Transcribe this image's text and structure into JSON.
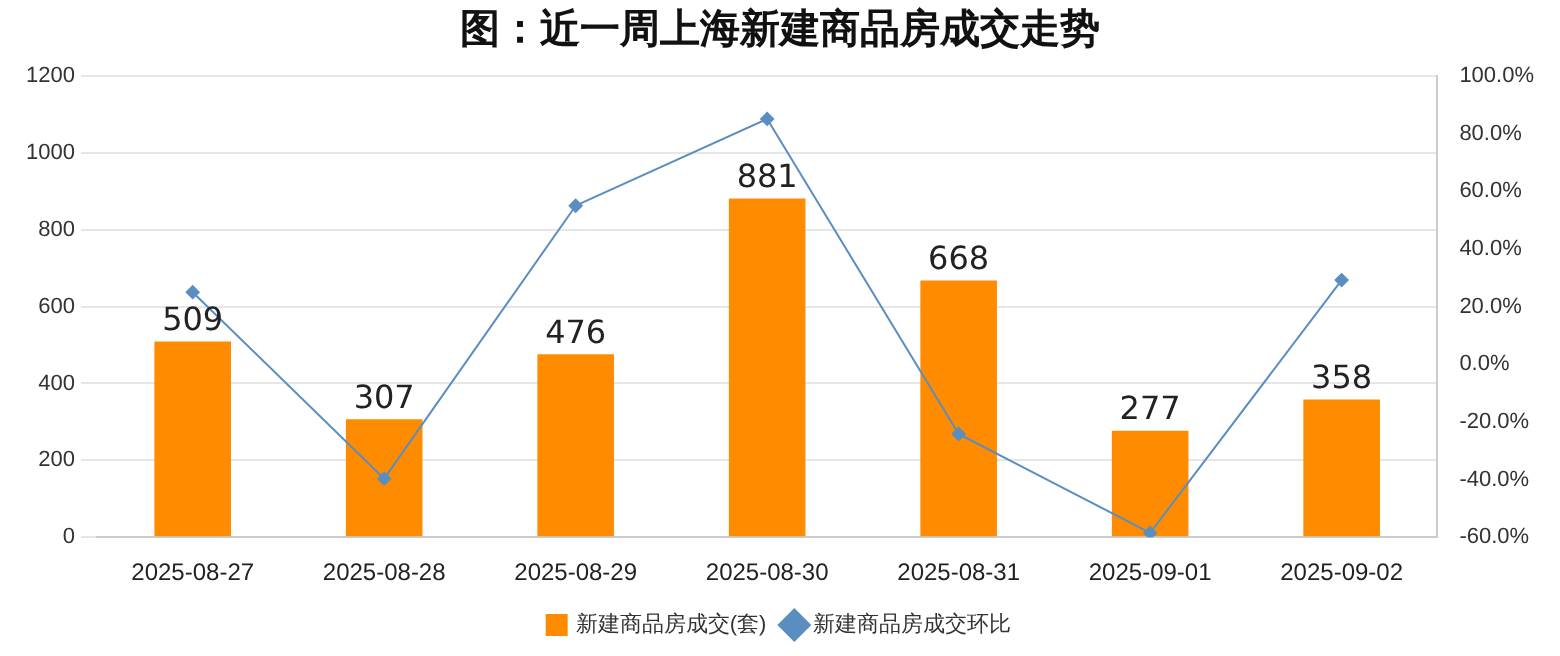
{
  "chart_data": {
    "type": "bar",
    "title": "图：近一周上海新建商品房成交走势",
    "categories": [
      "2025-08-27",
      "2025-08-28",
      "2025-08-29",
      "2025-08-30",
      "2025-08-31",
      "2025-09-01",
      "2025-09-02"
    ],
    "series": [
      {
        "name": "新建商品房成交(套)",
        "color": "#ff8c00",
        "values": [
          509,
          307,
          476,
          881,
          668,
          277,
          358
        ],
        "value_labels": [
          "509",
          "307",
          "476",
          "881",
          "668",
          "277",
          "358"
        ]
      },
      {
        "name": "新建商品房成交环比",
        "type": "line",
        "axis": "y2",
        "color": "#5b8ec0",
        "values": [
          25,
          -39.7,
          55,
          85.1,
          -24.2,
          -58.5,
          29.2
        ]
      }
    ],
    "ylim": [
      0,
      1200
    ],
    "yticks": [
      0,
      200,
      400,
      600,
      800,
      1000,
      1200
    ],
    "y2lim": [
      -60,
      100
    ],
    "y2ticks": [
      {
        "value": -60,
        "label": "-60.0%"
      },
      {
        "value": -40,
        "label": "-40.0%"
      },
      {
        "value": -20,
        "label": "-20.0%"
      },
      {
        "value": 0,
        "label": "0.0%"
      },
      {
        "value": 20,
        "label": "20.0%"
      },
      {
        "value": 40,
        "label": "40.0%"
      },
      {
        "value": 60,
        "label": "60.0%"
      },
      {
        "value": 80,
        "label": "80.0%"
      },
      {
        "value": 100,
        "label": "100.0%"
      }
    ],
    "grid": "y",
    "legend": "bottom",
    "marker": "diamond",
    "line_style": "solid"
  }
}
